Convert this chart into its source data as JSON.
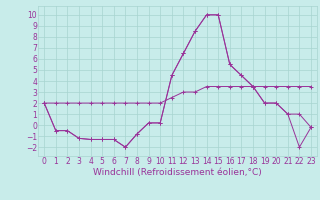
{
  "xlabel": "Windchill (Refroidissement éolien,°C)",
  "bg_color": "#c8ecea",
  "grid_color": "#a8d4d0",
  "line_color": "#993399",
  "x_ticks": [
    0,
    1,
    2,
    3,
    4,
    5,
    6,
    7,
    8,
    9,
    10,
    11,
    12,
    13,
    14,
    15,
    16,
    17,
    18,
    19,
    20,
    21,
    22,
    23
  ],
  "y_ticks": [
    -2,
    -1,
    0,
    1,
    2,
    3,
    4,
    5,
    6,
    7,
    8,
    9,
    10
  ],
  "ylim": [
    -2.8,
    10.8
  ],
  "xlim": [
    -0.5,
    23.5
  ],
  "line1_x": [
    0,
    1,
    2,
    3,
    4,
    5,
    6,
    7,
    8,
    9,
    10,
    11,
    12,
    13,
    14,
    15,
    16,
    17,
    18,
    19,
    20,
    21,
    22,
    23
  ],
  "line1_y": [
    2.0,
    2.0,
    2.0,
    2.0,
    2.0,
    2.0,
    2.0,
    2.0,
    2.0,
    2.0,
    2.0,
    2.5,
    3.0,
    3.0,
    3.5,
    3.5,
    3.5,
    3.5,
    3.5,
    3.5,
    3.5,
    3.5,
    3.5,
    3.5
  ],
  "line2_x": [
    0,
    1,
    2,
    3,
    4,
    5,
    6,
    7,
    8,
    9,
    10,
    11,
    12,
    13,
    14,
    15,
    16,
    17,
    18,
    19,
    20,
    21,
    22,
    23
  ],
  "line2_y": [
    2.0,
    -0.5,
    -0.5,
    -1.2,
    -1.3,
    -1.3,
    -1.3,
    -2.0,
    -0.8,
    0.2,
    0.2,
    4.5,
    6.5,
    8.5,
    10.0,
    10.0,
    5.5,
    4.5,
    3.5,
    2.0,
    2.0,
    1.0,
    1.0,
    -0.2
  ],
  "line3_x": [
    0,
    1,
    2,
    3,
    4,
    5,
    6,
    7,
    8,
    9,
    10,
    11,
    12,
    13,
    14,
    15,
    16,
    17,
    18,
    19,
    20,
    21,
    22,
    23
  ],
  "line3_y": [
    2.0,
    -0.5,
    -0.5,
    -1.2,
    -1.3,
    -1.3,
    -1.3,
    -2.0,
    -0.8,
    0.2,
    0.2,
    4.5,
    6.5,
    8.5,
    10.0,
    10.0,
    5.5,
    4.5,
    3.5,
    2.0,
    2.0,
    1.0,
    -2.0,
    -0.2
  ],
  "tick_fontsize": 5.5,
  "label_fontsize": 6.5
}
